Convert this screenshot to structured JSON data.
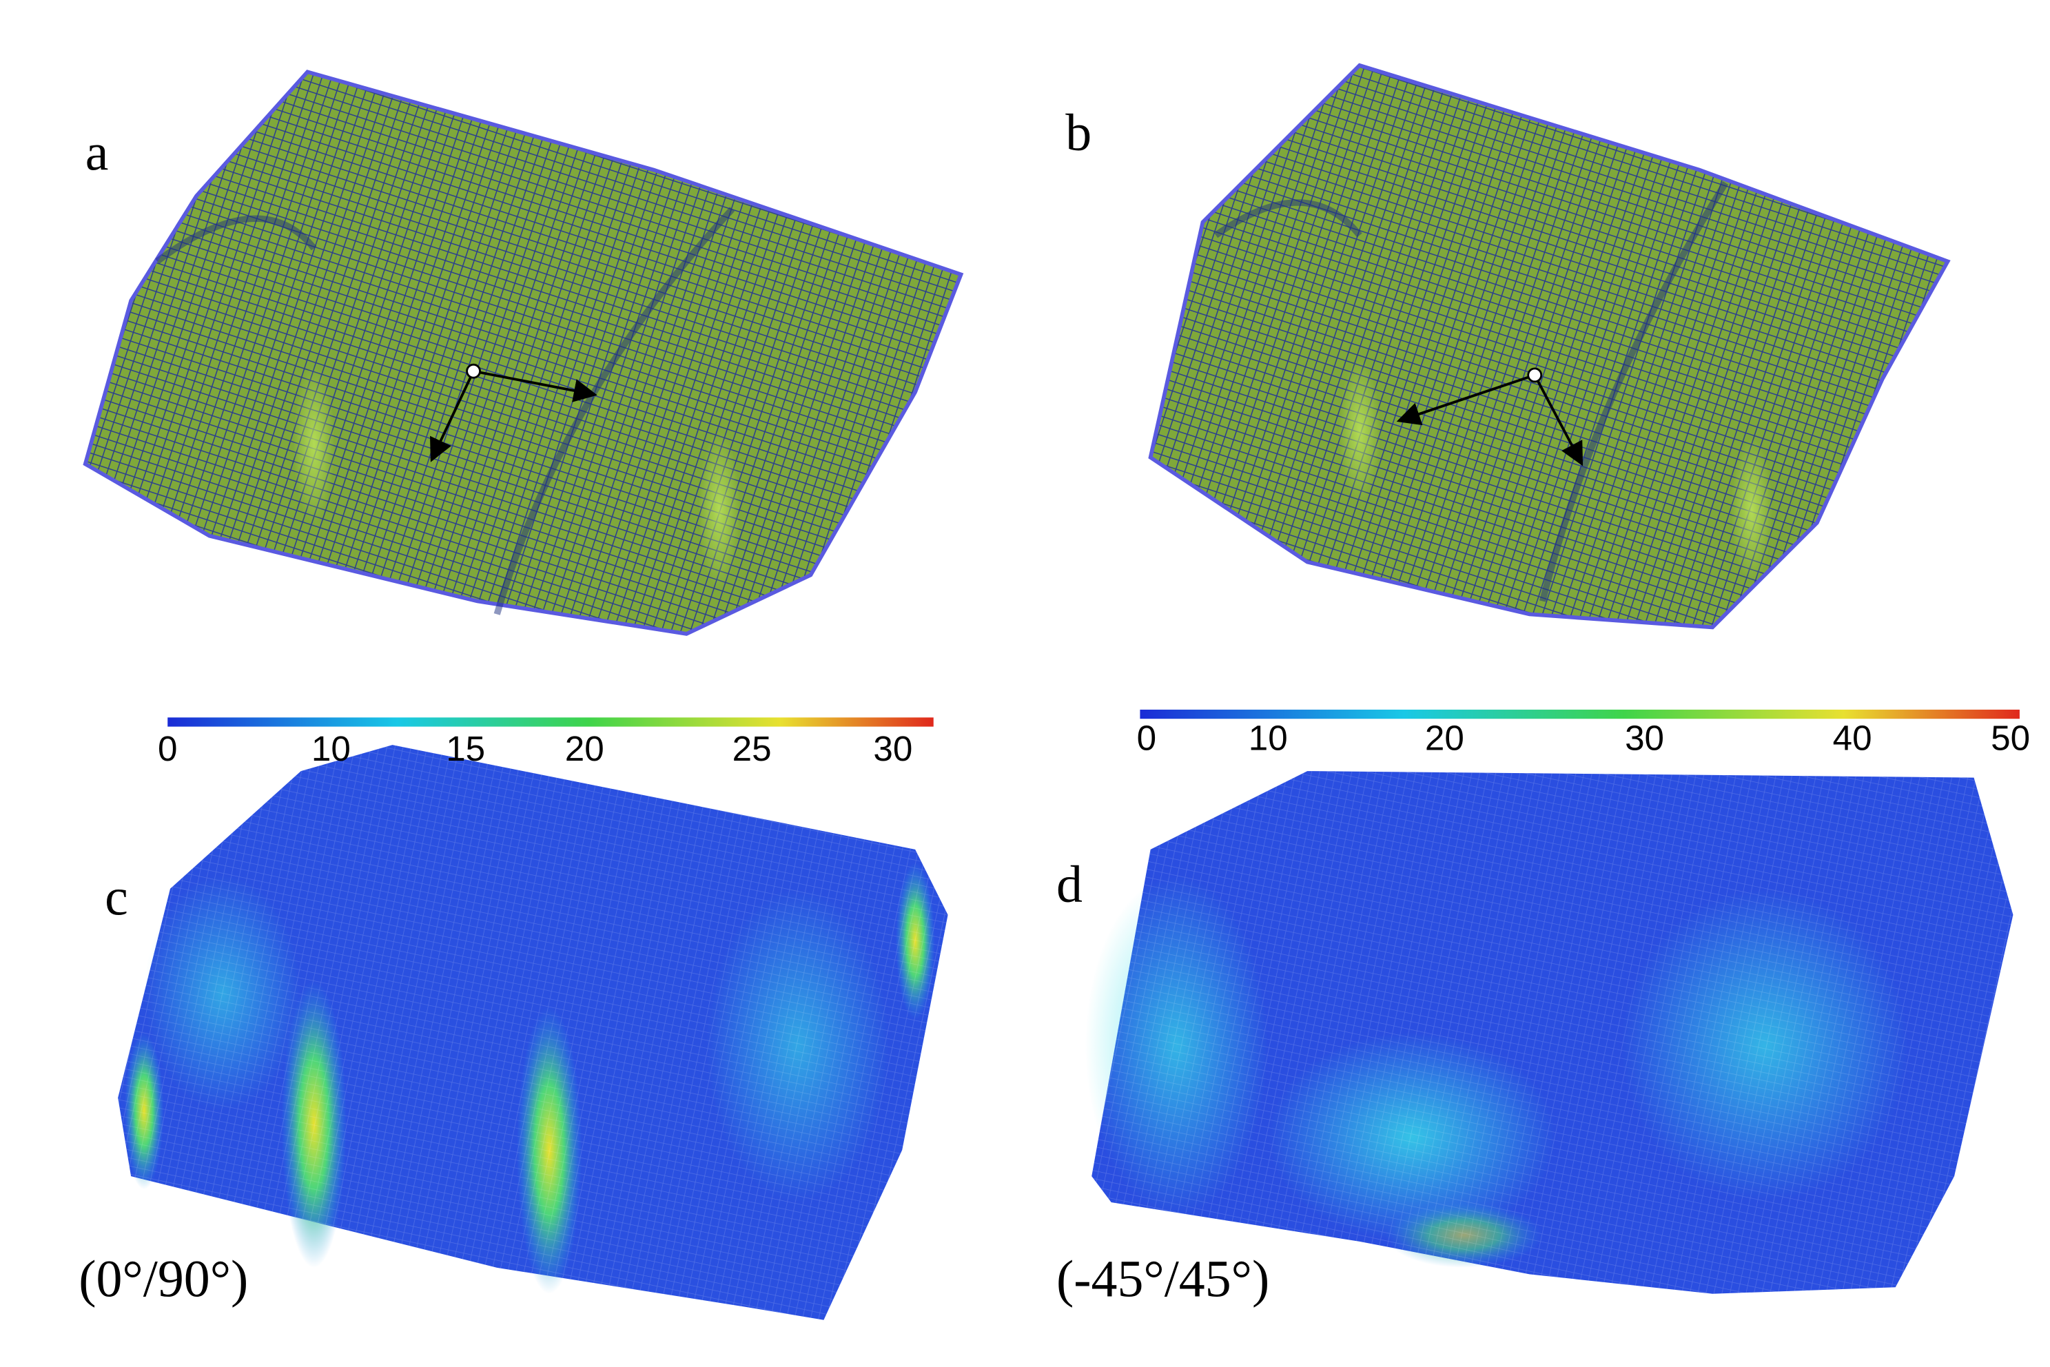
{
  "panels": [
    {
      "label": "a"
    },
    {
      "label": "b"
    },
    {
      "label": "c",
      "caption": "(0°/90°)",
      "colorbar_ticks": [
        0,
        10,
        15,
        20,
        25,
        30
      ]
    },
    {
      "label": "d",
      "caption": "(-45°/45°)",
      "colorbar_ticks": [
        0,
        10,
        20,
        30,
        40,
        50
      ]
    }
  ]
}
